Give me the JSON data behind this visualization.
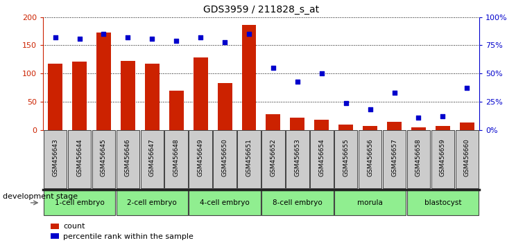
{
  "title": "GDS3959 / 211828_s_at",
  "samples": [
    "GSM456643",
    "GSM456644",
    "GSM456645",
    "GSM456646",
    "GSM456647",
    "GSM456648",
    "GSM456649",
    "GSM456650",
    "GSM456651",
    "GSM456652",
    "GSM456653",
    "GSM456654",
    "GSM456655",
    "GSM456656",
    "GSM456657",
    "GSM456658",
    "GSM456659",
    "GSM456660"
  ],
  "counts": [
    117,
    121,
    173,
    122,
    117,
    70,
    129,
    83,
    186,
    28,
    22,
    18,
    9,
    7,
    14,
    4,
    7,
    13
  ],
  "percentiles": [
    82,
    81,
    85,
    82,
    81,
    79,
    82,
    78,
    85,
    55,
    43,
    50,
    24,
    18,
    33,
    11,
    12,
    37
  ],
  "stages": [
    {
      "label": "1-cell embryo",
      "start": 0,
      "end": 3
    },
    {
      "label": "2-cell embryo",
      "start": 3,
      "end": 6
    },
    {
      "label": "4-cell embryo",
      "start": 6,
      "end": 9
    },
    {
      "label": "8-cell embryo",
      "start": 9,
      "end": 12
    },
    {
      "label": "morula",
      "start": 12,
      "end": 15
    },
    {
      "label": "blastocyst",
      "start": 15,
      "end": 18
    }
  ],
  "bar_color": "#cc2200",
  "scatter_color": "#0000cc",
  "ylim_left": [
    0,
    200
  ],
  "ylim_right": [
    0,
    100
  ],
  "yticks_left": [
    0,
    50,
    100,
    150,
    200
  ],
  "ytick_labels_left": [
    "0",
    "50",
    "100",
    "150",
    "200"
  ],
  "yticks_right": [
    0,
    25,
    50,
    75,
    100
  ],
  "ytick_labels_right": [
    "0%",
    "25%",
    "50%",
    "75%",
    "100%"
  ],
  "xlabel_stage": "development stage",
  "legend_count": "count",
  "legend_percentile": "percentile rank within the sample",
  "tick_bg_color": "#cccccc",
  "stage_color": "#90ee90",
  "stage_border_color": "#333333",
  "grid_color": "#000000"
}
